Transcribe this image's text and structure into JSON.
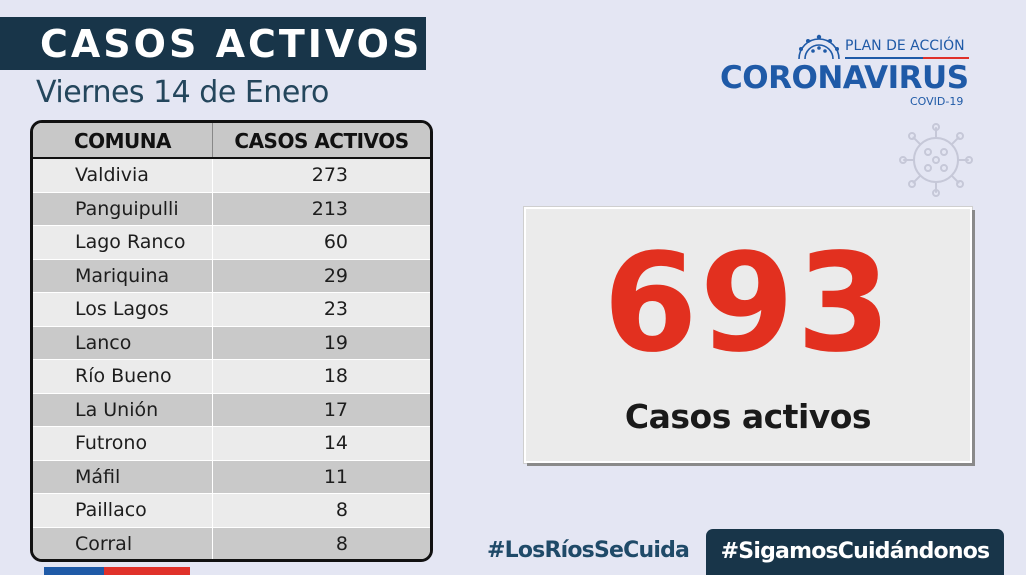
{
  "header": {
    "title": "CASOS ACTIVOS",
    "date": "Viernes 14 de Enero"
  },
  "logo": {
    "plan": "PLAN DE ACCIÓN",
    "main": "CORONAVIRUS",
    "sub": "COVID-19",
    "icon": "coronavirus-icon"
  },
  "table": {
    "headers": [
      "COMUNA",
      "CASOS ACTIVOS"
    ],
    "rows": [
      {
        "comuna": "Valdivia",
        "casos": "273"
      },
      {
        "comuna": "Panguipulli",
        "casos": "213"
      },
      {
        "comuna": "Lago Ranco",
        "casos": "60"
      },
      {
        "comuna": "Mariquina",
        "casos": "29"
      },
      {
        "comuna": "Los Lagos",
        "casos": "23"
      },
      {
        "comuna": "Lanco",
        "casos": "19"
      },
      {
        "comuna": "Río Bueno",
        "casos": "18"
      },
      {
        "comuna": "La Unión",
        "casos": "17"
      },
      {
        "comuna": "Futrono",
        "casos": "14"
      },
      {
        "comuna": "Máfil",
        "casos": "11"
      },
      {
        "comuna": "Paillaco",
        "casos": "8"
      },
      {
        "comuna": "Corral",
        "casos": "8"
      }
    ]
  },
  "total": {
    "value": "693",
    "label": "Casos activos"
  },
  "footer": {
    "hashtag_1": "#LosRíosSeCuida",
    "hashtag_2": "#SigamosCuidándonos"
  },
  "colors": {
    "background": "#e4e6f3",
    "navy": "#183549",
    "accent_red": "#e2301f",
    "brand_blue": "#1f5aa7"
  }
}
